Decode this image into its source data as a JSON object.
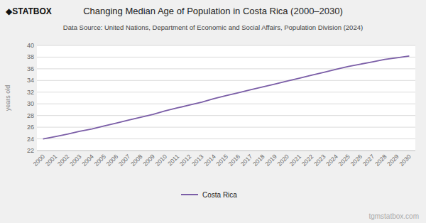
{
  "chart_data": {
    "type": "line",
    "title": "Changing Median Age of Population in Costa Rica (2000–2030)",
    "subtitle": "Data Source: United Nations, Department of Economic and Social Affairs, Population Division (2024)",
    "y_label": "years old",
    "annotations": [
      "◆STATBOX",
      "tgmstatbox.com"
    ],
    "x": [
      2000,
      2001,
      2002,
      2003,
      2004,
      2005,
      2006,
      2007,
      2008,
      2009,
      2010,
      2011,
      2012,
      2013,
      2014,
      2015,
      2016,
      2017,
      2018,
      2019,
      2020,
      2021,
      2022,
      2023,
      2024,
      2025,
      2026,
      2027,
      2028,
      2029,
      2030
    ],
    "series": [
      {
        "name": "Costa Rica",
        "color": "#7b5ea7",
        "values": [
          24.0,
          24.4,
          24.8,
          25.3,
          25.7,
          26.2,
          26.7,
          27.2,
          27.7,
          28.2,
          28.8,
          29.3,
          29.8,
          30.3,
          30.9,
          31.4,
          31.9,
          32.4,
          32.9,
          33.4,
          33.9,
          34.4,
          34.9,
          35.4,
          35.9,
          36.4,
          36.8,
          37.2,
          37.6,
          37.9,
          38.2
        ]
      }
    ],
    "xlim": [
      1999.5,
      2030.5
    ],
    "xticks": [
      2000,
      2001,
      2002,
      2003,
      2004,
      2005,
      2006,
      2007,
      2008,
      2009,
      2010,
      2011,
      2012,
      2013,
      2014,
      2015,
      2016,
      2017,
      2018,
      2019,
      2020,
      2021,
      2022,
      2023,
      2024,
      2025,
      2026,
      2027,
      2028,
      2029,
      2030
    ],
    "ylim": [
      22,
      40
    ],
    "yticks": [
      22,
      24,
      26,
      28,
      30,
      32,
      34,
      36,
      38,
      40
    ],
    "grid": true,
    "legend": "bottom"
  }
}
